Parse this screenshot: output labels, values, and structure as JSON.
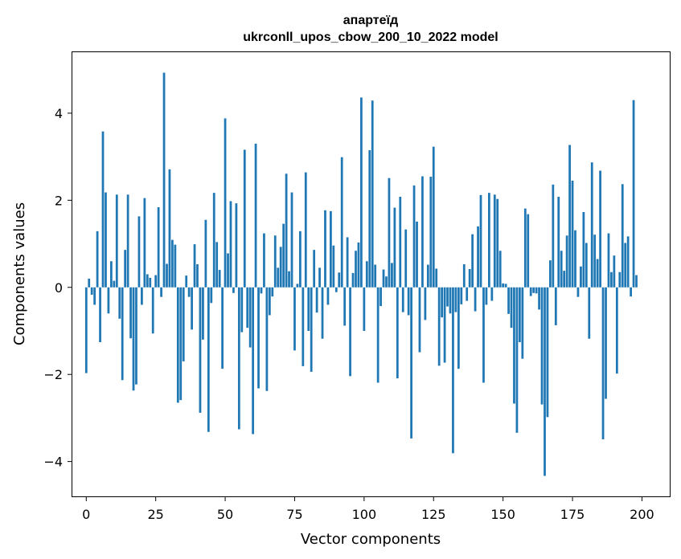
{
  "chart_data": {
    "type": "bar",
    "title": "апартеїд",
    "subtitle": "ukrconll_upos_cbow_200_10_2022 model",
    "xlabel": "Vector components",
    "ylabel": "Components values",
    "xlim": [
      -5,
      210
    ],
    "ylim": [
      -4.8,
      5.4
    ],
    "xticks": [
      0,
      25,
      50,
      75,
      100,
      125,
      150,
      175,
      200
    ],
    "yticks": [
      -4,
      -2,
      0,
      2,
      4
    ],
    "xtick_labels": [
      "0",
      "25",
      "50",
      "75",
      "100",
      "125",
      "150",
      "175",
      "200"
    ],
    "ytick_labels": [
      "−4",
      "−2",
      "0",
      "2",
      "4"
    ],
    "grid": false,
    "bar_color": "#1f77b4",
    "values": [
      -1.97,
      0.2,
      -0.17,
      -0.4,
      1.29,
      -1.26,
      3.58,
      2.18,
      -0.6,
      0.6,
      0.15,
      2.13,
      -0.72,
      -2.13,
      0.86,
      2.13,
      -1.17,
      -2.37,
      -2.23,
      1.63,
      -0.4,
      2.05,
      0.3,
      0.22,
      -1.06,
      0.28,
      1.84,
      -0.22,
      4.93,
      0.54,
      2.71,
      1.09,
      0.98,
      -2.65,
      -2.59,
      -1.7,
      0.27,
      -0.22,
      -0.97,
      0.99,
      0.53,
      -2.88,
      -1.2,
      1.55,
      -3.32,
      -0.36,
      2.17,
      1.04,
      0.4,
      -1.87,
      3.88,
      0.78,
      1.98,
      -0.13,
      1.93,
      -3.26,
      -1.03,
      3.16,
      -0.93,
      -1.38,
      -3.37,
      3.3,
      -2.32,
      -0.14,
      1.24,
      -2.38,
      -0.64,
      -0.21,
      1.19,
      0.45,
      0.93,
      1.46,
      2.61,
      0.37,
      2.18,
      -1.45,
      0.08,
      1.29,
      -1.81,
      2.64,
      -1.0,
      -1.94,
      0.86,
      -0.58,
      0.45,
      -1.18,
      1.77,
      -0.4,
      1.75,
      0.96,
      -0.11,
      0.34,
      2.99,
      -0.88,
      1.15,
      -2.04,
      0.33,
      0.84,
      1.03,
      4.36,
      -1.0,
      0.6,
      3.15,
      4.29,
      0.52,
      -2.19,
      -0.43,
      0.41,
      0.25,
      2.51,
      0.56,
      1.83,
      -2.09,
      2.08,
      -0.57,
      1.33,
      -0.64,
      -3.47,
      2.34,
      1.51,
      -1.49,
      2.55,
      -0.75,
      0.52,
      2.54,
      3.23,
      0.43,
      -1.8,
      -0.69,
      -1.73,
      -0.44,
      -0.6,
      -3.81,
      -0.57,
      -1.87,
      -0.39,
      0.53,
      -0.31,
      0.42,
      1.22,
      -0.55,
      1.4,
      2.12,
      -2.19,
      -0.4,
      2.17,
      -0.31,
      2.13,
      2.03,
      0.84,
      0.09,
      0.08,
      -0.61,
      -0.93,
      -2.67,
      -3.34,
      -1.26,
      -1.64,
      1.81,
      1.68,
      -0.2,
      -0.13,
      -0.14,
      -0.51,
      -2.69,
      -4.33,
      -2.98,
      0.62,
      2.36,
      -0.87,
      2.08,
      0.84,
      0.38,
      1.19,
      3.27,
      2.45,
      1.31,
      -0.22,
      0.48,
      1.73,
      1.02,
      -1.18,
      2.87,
      1.21,
      0.65,
      2.68,
      -3.49,
      -2.56,
      1.24,
      0.35,
      0.73,
      -1.98,
      0.35,
      2.37,
      1.02,
      1.17,
      -0.21,
      4.3,
      0.28
    ]
  }
}
